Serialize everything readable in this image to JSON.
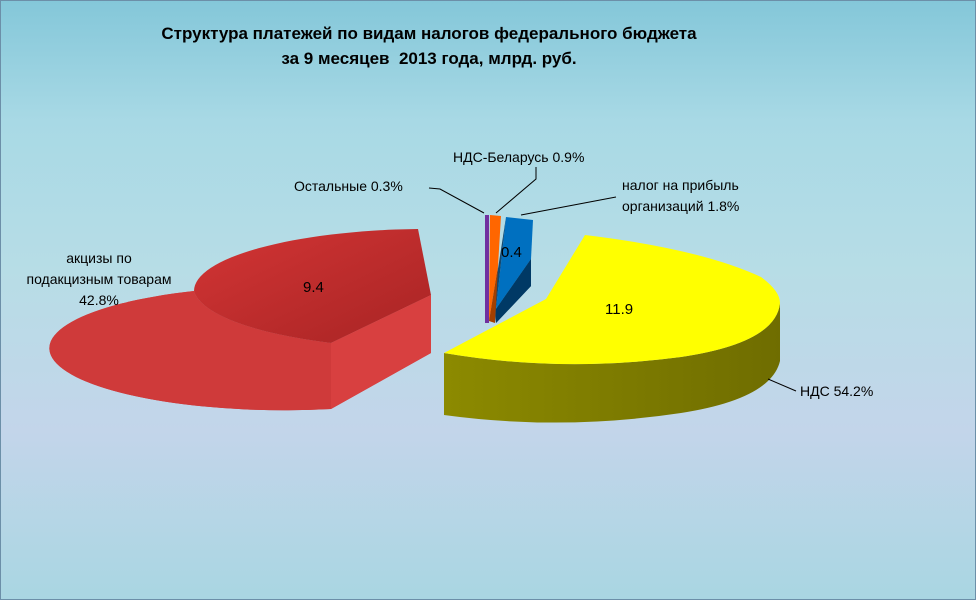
{
  "chart_data": {
    "type": "pie",
    "title_lines": [
      "Структура платежей по видам налогов федерального бюджета",
      "за 9 месяцев  2013 года, млрд. руб."
    ],
    "slices": [
      {
        "id": "nds",
        "value": 11.9,
        "value_label": "11.9",
        "label": "НДС 54.2%",
        "percent": 54.2,
        "color": "#ffff00"
      },
      {
        "id": "profit",
        "value": 0.4,
        "value_label": "0.4",
        "label_lines": [
          "налог на прибыль",
          "организаций 1.8%"
        ],
        "percent": 1.8,
        "color": "#0070c0"
      },
      {
        "id": "nds-belarus",
        "value": 0.2,
        "label": "НДС-Беларусь 0.9%",
        "percent": 0.9,
        "color": "#ff6600"
      },
      {
        "id": "other",
        "value": 0.07,
        "label": "Остальные 0.3%",
        "percent": 0.3,
        "color": "#7030a0"
      },
      {
        "id": "excise",
        "value": 9.4,
        "value_label": "9.4",
        "label_lines": [
          "акцизы по",
          "подакцизным товарам",
          "42.8%"
        ],
        "percent": 42.8,
        "color": "#e03c3c"
      }
    ]
  }
}
